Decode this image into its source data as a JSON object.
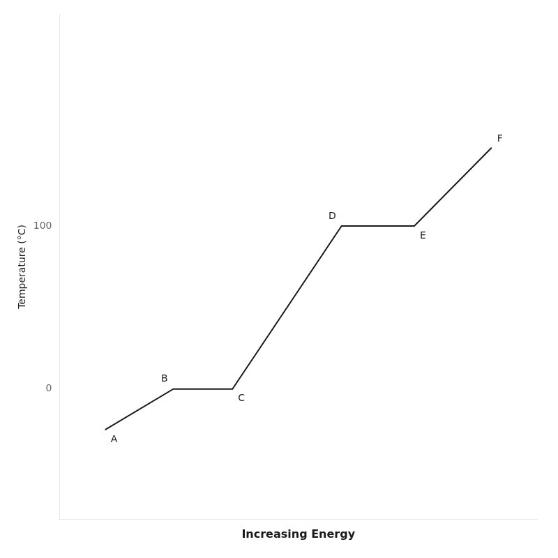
{
  "chart_data": {
    "type": "line",
    "xlabel": "Increasing Energy",
    "ylabel": "Temperature (°C)",
    "x": [
      1.0,
      2.5,
      3.8,
      6.2,
      7.8,
      9.5
    ],
    "values": [
      -25,
      0,
      0,
      100,
      100,
      148
    ],
    "color": "#1a1a1a",
    "xlim": [
      0.0,
      10.5
    ],
    "ylim": [
      -80,
      230
    ],
    "yticks": [
      0,
      100
    ],
    "grid": false,
    "tick_labels": "y",
    "annotations": [
      {
        "text": "A",
        "x": 1.0,
        "y": -25
      },
      {
        "text": "B",
        "x": 2.5,
        "y": 0
      },
      {
        "text": "C",
        "x": 3.8,
        "y": 0
      },
      {
        "text": "D",
        "x": 6.2,
        "y": 100
      },
      {
        "text": "E",
        "x": 7.8,
        "y": 100
      },
      {
        "text": "F",
        "x": 9.5,
        "y": 148
      }
    ]
  }
}
